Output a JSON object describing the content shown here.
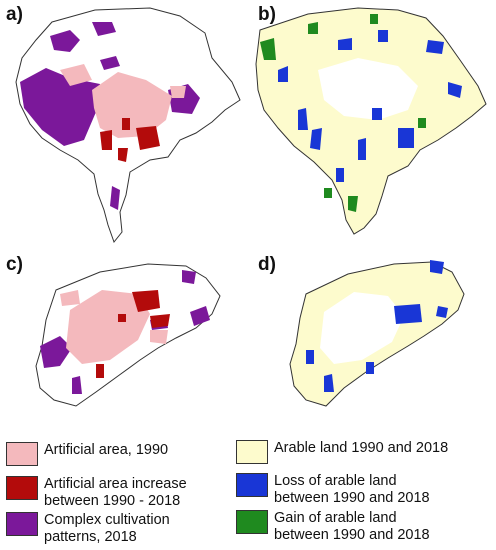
{
  "panels": [
    {
      "id": "a",
      "label": "a)"
    },
    {
      "id": "b",
      "label": "b)"
    },
    {
      "id": "c",
      "label": "c)"
    },
    {
      "id": "d",
      "label": "d)"
    }
  ],
  "colors": {
    "artificial_1990": "#f4b9bd",
    "artificial_increase": "#b30b0b",
    "complex_cultivation": "#7b189a",
    "arable": "#fdfbcd",
    "arable_loss": "#1936d6",
    "arable_gain": "#1f8a1f",
    "boundary": "#333333"
  },
  "legend": {
    "artificial_1990": "Artificial area, 1990",
    "artificial_increase": "Artificial area increase\nbetween 1990 - 2018",
    "complex_cultivation": "Complex cultivation\npatterns, 2018",
    "arable": "Arable land 1990 and 2018",
    "arable_loss": "Loss of arable land\nbetween 1990 and 2018",
    "arable_gain": "Gain of arable land\nbetween 1990 and 2018"
  }
}
